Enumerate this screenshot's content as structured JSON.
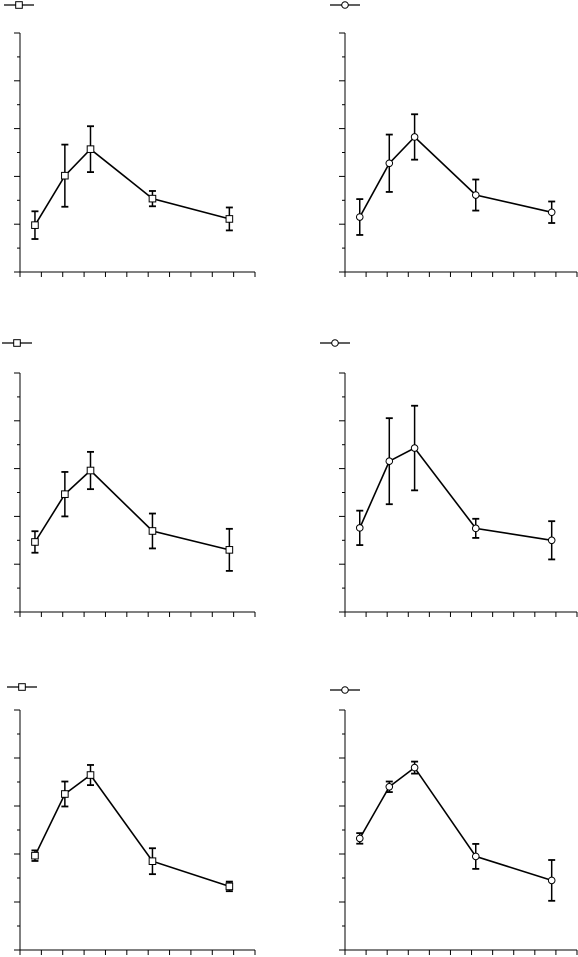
{
  "chart_data": [
    {
      "type": "line",
      "marker": "square",
      "title": "",
      "xlabel": "",
      "ylabel": "",
      "x": [
        0.7,
        2.1,
        3.3,
        6.2,
        9.8
      ],
      "series": [
        {
          "values": [
            1.96,
            4.03,
            5.14,
            3.07,
            2.22
          ],
          "error": [
            0.58,
            1.3,
            0.96,
            0.32,
            0.48
          ]
        }
      ],
      "xlim": [
        0,
        11
      ],
      "ylim": [
        0,
        10
      ],
      "legend": "top-left",
      "grid": false
    },
    {
      "type": "line",
      "marker": "circle",
      "title": "",
      "xlabel": "",
      "ylabel": "",
      "x": [
        0.7,
        2.1,
        3.3,
        6.2,
        9.8
      ],
      "series": [
        {
          "values": [
            2.3,
            4.55,
            5.65,
            3.22,
            2.5
          ],
          "error": [
            0.75,
            1.2,
            0.95,
            0.65,
            0.45
          ]
        }
      ],
      "xlim": [
        0,
        11
      ],
      "ylim": [
        0,
        10
      ],
      "legend": "top-left",
      "grid": false
    },
    {
      "type": "line",
      "marker": "square",
      "title": "",
      "xlabel": "",
      "ylabel": "",
      "x": [
        0.7,
        2.1,
        3.3,
        6.2,
        9.8
      ],
      "series": [
        {
          "values": [
            2.93,
            4.93,
            5.92,
            3.39,
            2.6
          ],
          "error": [
            0.45,
            0.93,
            0.78,
            0.73,
            0.88
          ]
        }
      ],
      "xlim": [
        0,
        11
      ],
      "ylim": [
        0,
        10
      ],
      "legend": "top-left",
      "grid": false
    },
    {
      "type": "line",
      "marker": "circle",
      "title": "",
      "xlabel": "",
      "ylabel": "",
      "x": [
        0.7,
        2.1,
        3.3,
        6.2,
        9.8
      ],
      "series": [
        {
          "values": [
            3.52,
            6.31,
            6.86,
            3.5,
            3.0
          ],
          "error": [
            0.72,
            1.8,
            1.77,
            0.4,
            0.8
          ]
        }
      ],
      "xlim": [
        0,
        11
      ],
      "ylim": [
        0,
        10
      ],
      "legend": "top-left",
      "grid": false
    },
    {
      "type": "line",
      "marker": "square",
      "title": "",
      "xlabel": "",
      "ylabel": "",
      "x": [
        0.7,
        2.1,
        3.3,
        6.2,
        9.8
      ],
      "series": [
        {
          "values": [
            3.93,
            6.5,
            7.29,
            3.7,
            2.65
          ],
          "error": [
            0.22,
            0.52,
            0.42,
            0.54,
            0.2
          ]
        }
      ],
      "xlim": [
        0,
        11
      ],
      "ylim": [
        0,
        10
      ],
      "legend": "top-left",
      "grid": false
    },
    {
      "type": "line",
      "marker": "circle",
      "title": "",
      "xlabel": "",
      "ylabel": "",
      "x": [
        0.7,
        2.1,
        3.3,
        6.2,
        9.8
      ],
      "series": [
        {
          "values": [
            4.65,
            6.8,
            7.6,
            3.9,
            2.9
          ],
          "error": [
            0.22,
            0.22,
            0.25,
            0.52,
            0.85
          ]
        }
      ],
      "xlim": [
        0,
        11
      ],
      "ylim": [
        0,
        10
      ],
      "legend": "top-left",
      "grid": false
    }
  ]
}
